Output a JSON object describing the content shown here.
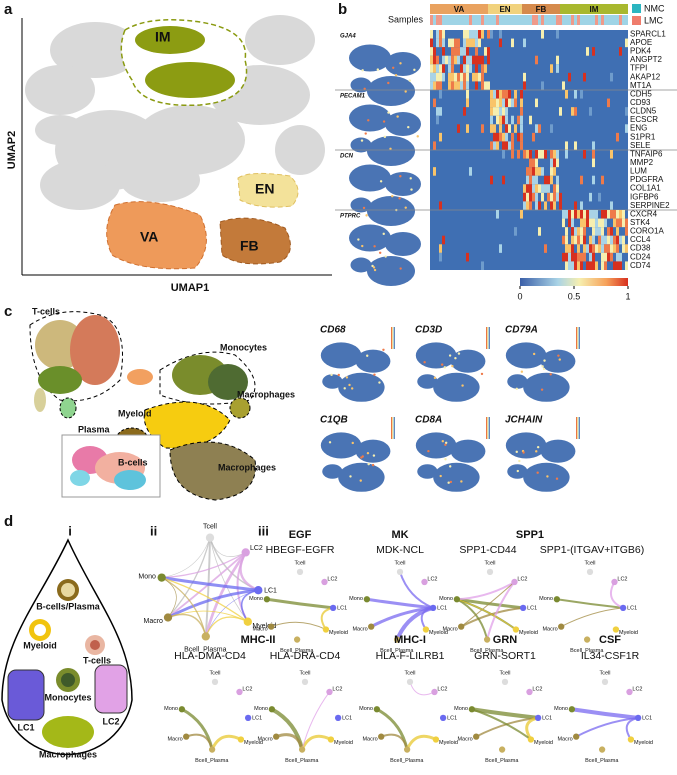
{
  "panel_labels": {
    "a": "a",
    "b": "b",
    "c": "c",
    "d": "d"
  },
  "a": {
    "y_axis": "UMAP2",
    "x_axis": "UMAP1",
    "clusters": [
      "IM",
      "EN",
      "VA",
      "FB"
    ]
  },
  "b": {
    "samples_label": "Samples",
    "groups": [
      "VA",
      "EN",
      "FB",
      "IM"
    ],
    "legend": [
      "NMC",
      "LMC"
    ],
    "blocks": [
      {
        "marker": "GJA4",
        "genes": [
          "SPARCL1",
          "APOE",
          "PDK4",
          "ANGPT2",
          "TFPI",
          "AKAP12",
          "MT1A"
        ]
      },
      {
        "marker": "PECAM1",
        "genes": [
          "CDH5",
          "CD93",
          "CLDN5",
          "ECSCR",
          "ENG",
          "S1PR1",
          "SELE"
        ]
      },
      {
        "marker": "DCN",
        "genes": [
          "TNFAIP6",
          "MMP2",
          "LUM",
          "PDGFRA",
          "COL1A1",
          "IGFBP6",
          "SERPINE2"
        ]
      },
      {
        "marker": "PTPRC",
        "genes": [
          "CXCR4",
          "STK4",
          "CORO1A",
          "CCL4",
          "CD38",
          "CD24",
          "CD74"
        ]
      }
    ],
    "colorbar": {
      "ticks": [
        0,
        0.5,
        1
      ]
    }
  },
  "c": {
    "clusters": [
      "T-cells",
      "Plasma",
      "Monocytes",
      "Myeloid",
      "Macrophages",
      "B-cells",
      "Macrophages"
    ],
    "features": [
      "CD68",
      "CD3D",
      "CD79A",
      "C1QB",
      "CD8A",
      "JCHAIN"
    ]
  },
  "d": {
    "sub_labels": [
      "i",
      "ii",
      "iii"
    ],
    "cell_types": [
      "B-cells/Plasma",
      "Myeloid",
      "T-cells",
      "Monocytes",
      "LC1",
      "LC2",
      "Macrophages"
    ],
    "nodes": [
      "Tcell",
      "LC2",
      "LC1",
      "Myeloid",
      "Bcell_Plasma",
      "Macro",
      "Mono"
    ],
    "pathways": [
      {
        "name": "EGF",
        "pairs": [
          "HBEGF-EGFR"
        ]
      },
      {
        "name": "MK",
        "pairs": [
          "MDK-NCL"
        ]
      },
      {
        "name": "SPP1",
        "pairs": [
          "SPP1-CD44",
          "SPP1-(ITGAV+ITGB6)"
        ]
      },
      {
        "name": "MHC-II",
        "pairs": [
          "HLA-DMA-CD4",
          "HLA-DRA-CD4"
        ]
      },
      {
        "name": "MHC-I",
        "pairs": [
          "HLA-F-LILRB1"
        ]
      },
      {
        "name": "GRN",
        "pairs": [
          "GRN-SORT1"
        ]
      },
      {
        "name": "CSF",
        "pairs": [
          "IL34-CSF1R"
        ]
      }
    ]
  }
}
